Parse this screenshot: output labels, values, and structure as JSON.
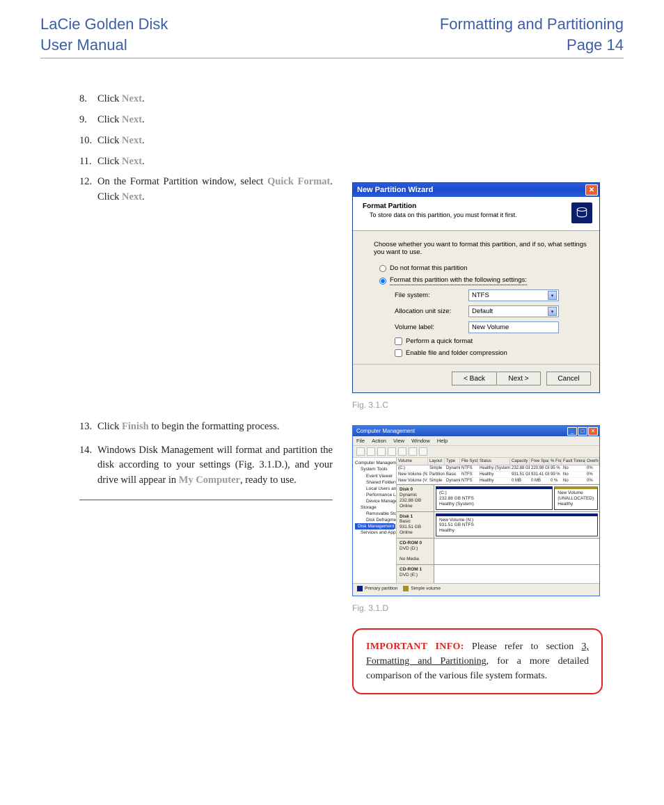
{
  "header": {
    "left_line1": "LaCie Golden Disk",
    "left_line2": "User Manual",
    "right_line1": "Formatting and Partitioning",
    "right_line2": "Page 14"
  },
  "colors": {
    "header_blue": "#3b5ea8",
    "xp_title_blue": "#2a5bd7",
    "xp_close_red": "#e25f39",
    "important_red": "#d22222",
    "gray_bold": "#9a9a9a",
    "caption_gray": "#9a9a9a"
  },
  "steps_a": [
    {
      "n": "8.",
      "pre": "Click ",
      "bold": "Next",
      "post": "."
    },
    {
      "n": "9.",
      "pre": "Click ",
      "bold": "Next",
      "post": "."
    },
    {
      "n": "10.",
      "pre": "Click ",
      "bold": "Next",
      "post": "."
    },
    {
      "n": "11.",
      "pre": "Click ",
      "bold": "Next",
      "post": "."
    }
  ],
  "step12": {
    "n": "12.",
    "t1": "On the Format Partition window, select ",
    "b1": "Quick For­mat",
    "t2": ". Click ",
    "b2": "Next",
    "t3": "."
  },
  "step13": {
    "n": "13.",
    "t1": " Click ",
    "b1": "Finish",
    "t2": " to begin the formatting process."
  },
  "step14": {
    "n": "14.",
    "t1": "Windows Disk Management will format and parti­tion the disk according to your settings (Fig. 3.1.D.), and your drive will appear in ",
    "b1": "My Computer",
    "t2": ", ready to use."
  },
  "wizard": {
    "title": "New Partition Wizard",
    "head_title": "Format Partition",
    "head_sub": "To store data on this partition, you must format it first.",
    "intro": "Choose whether you want to format this partition, and if so, what settings you want to use.",
    "radio1": "Do not format this partition",
    "radio2": "Format this partition with the following settings:",
    "lbl_fs": "File system:",
    "val_fs": "NTFS",
    "lbl_au": "Allocation unit size:",
    "val_au": "Default",
    "lbl_vl": "Volume label:",
    "val_vl": "New Volume",
    "chk1": "Perform a quick format",
    "chk2": "Enable file and folder compression",
    "btn_back": "< Back",
    "btn_next": "Next >",
    "btn_cancel": "Cancel"
  },
  "caption_c": "Fig. 3.1.C",
  "caption_d": "Fig. 3.1.D",
  "dm": {
    "title": "Computer Management",
    "menu": [
      "File",
      "Action",
      "View",
      "Window",
      "Help"
    ],
    "tree": [
      {
        "t": "Computer Management (Local)",
        "cls": ""
      },
      {
        "t": "System Tools",
        "cls": "ind1"
      },
      {
        "t": "Event Viewer",
        "cls": "ind2"
      },
      {
        "t": "Shared Folders",
        "cls": "ind2"
      },
      {
        "t": "Local Users and Groups",
        "cls": "ind2"
      },
      {
        "t": "Performance Logs and Alerts",
        "cls": "ind2"
      },
      {
        "t": "Device Manager",
        "cls": "ind2"
      },
      {
        "t": "Storage",
        "cls": "ind1"
      },
      {
        "t": "Removable Storage",
        "cls": "ind2"
      },
      {
        "t": "Disk Defragmenter",
        "cls": "ind2"
      },
      {
        "t": "Disk Management",
        "cls": "ind2 sel"
      },
      {
        "t": "Services and Applications",
        "cls": "ind1"
      }
    ],
    "cols": [
      "Volume",
      "Layout",
      "Type",
      "File System",
      "Status",
      "Capacity",
      "Free Space",
      "% Free",
      "Fault Tolerance",
      "Overhead"
    ],
    "rows": [
      [
        "(C:)",
        "Simple",
        "Dynamic",
        "NTFS",
        "Healthy (System)",
        "232.88 GB",
        "220.98 GB",
        "95 %",
        "No",
        "0%"
      ],
      [
        "New Volume (N:)",
        "Partition",
        "Basic",
        "NTFS",
        "Healthy",
        "931.51 GB",
        "931.41 GB",
        "99 %",
        "No",
        "0%"
      ],
      [
        "New Volume (V:)",
        "Simple",
        "Dynamic",
        "NTFS",
        "Healthy",
        "0 MB",
        "0 MB",
        "0 %",
        "No",
        "0%"
      ]
    ],
    "disk0": {
      "name": "Disk 0",
      "sub": "Dynamic\n232.88 GB\nOnline",
      "p1": "(C:)\n232.88 GB NTFS\nHealthy (System)",
      "p2": "New Volume\n(UNALLOCATED)\nHealthy"
    },
    "disk1": {
      "name": "Disk 1",
      "sub": "Basic\n931.51 GB\nOnline",
      "p1": "New Volume (N:)\n931.51 GB NTFS\nHealthy"
    },
    "cd0": {
      "name": "CD-ROM 0",
      "sub": "DVD (D:)\n\nNo Media"
    },
    "cd1": {
      "name": "CD-ROM 1",
      "sub": "DVD (E:)\n\nNo Media"
    },
    "legend1": "Primary partition",
    "legend2": "Simple volume"
  },
  "info": {
    "lead": "IMPORTANT INFO:",
    "t1": "  Please refer to section ",
    "link1": "3, Formatting and Partitioning",
    "t2": ", for a more detailed comparison of the various file system formats."
  }
}
